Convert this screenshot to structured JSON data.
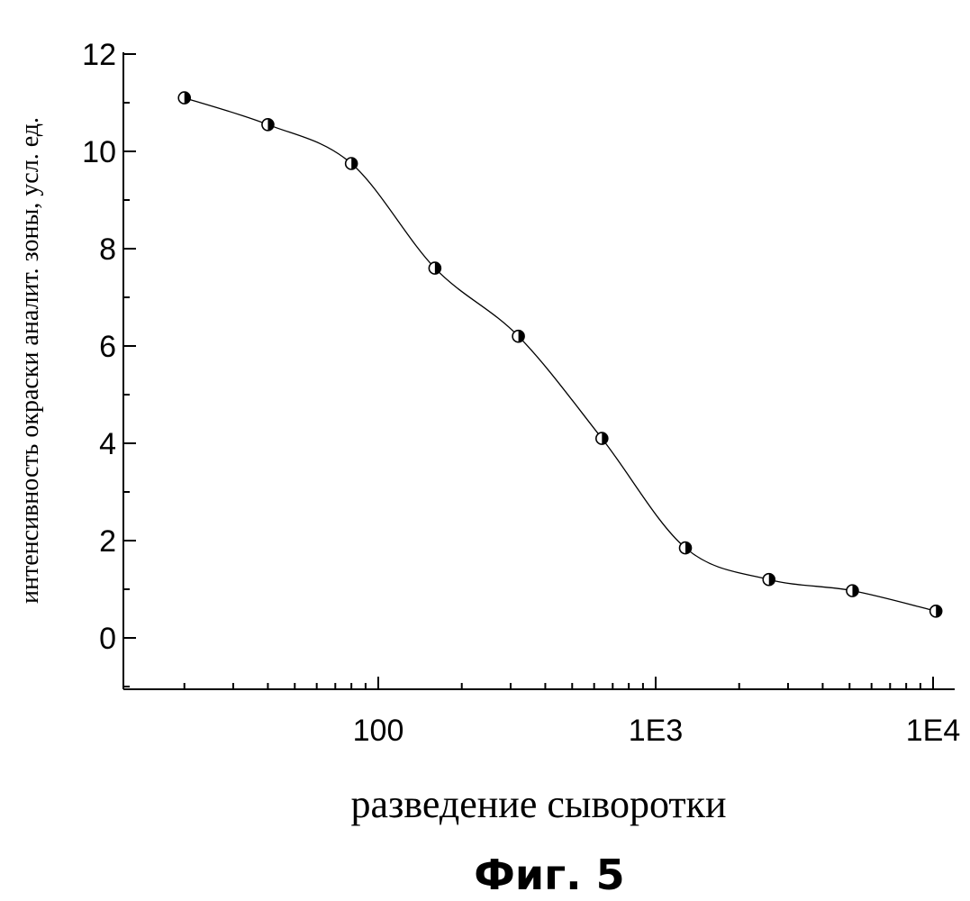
{
  "chart_data": {
    "type": "scatter",
    "title": "",
    "xlabel": "разведение сыворотки",
    "ylabel": "интенсивность окраски аналит. зоны, усл. ед.",
    "x_scale": "log",
    "xlim": [
      10,
      11000
    ],
    "ylim": [
      -1,
      12
    ],
    "x_ticks": [
      {
        "value": 100,
        "label": "100"
      },
      {
        "value": 1000,
        "label": "1E3"
      },
      {
        "value": 10000,
        "label": "1E4"
      }
    ],
    "y_ticks": [
      {
        "value": 0,
        "label": "0"
      },
      {
        "value": 2,
        "label": "2"
      },
      {
        "value": 4,
        "label": "4"
      },
      {
        "value": 6,
        "label": "6"
      },
      {
        "value": 8,
        "label": "8"
      },
      {
        "value": 10,
        "label": "10"
      },
      {
        "value": 12,
        "label": "12"
      }
    ],
    "grid": false,
    "legend": "none",
    "series": [
      {
        "x": [
          20,
          40,
          80,
          160,
          320,
          640,
          1280,
          2560,
          5120,
          10240
        ],
        "y": [
          11.1,
          10.55,
          9.75,
          7.6,
          6.2,
          4.1,
          1.85,
          1.2,
          0.97,
          0.55
        ]
      }
    ]
  },
  "caption": "Фиг. 5"
}
